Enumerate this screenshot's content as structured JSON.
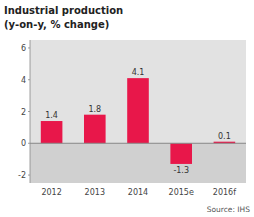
{
  "chart_data": {
    "type": "bar",
    "title": "Industrial production",
    "subtitle": "(y-on-y, % change)",
    "annotations": [
      "Source: IHS"
    ],
    "categories": [
      "2012",
      "2013",
      "2014",
      "2015e",
      "2016f"
    ],
    "values": [
      1.4,
      1.8,
      4.1,
      -1.3,
      0.1
    ],
    "color": "#e8174a",
    "ylim": [
      -2.5,
      6.5
    ],
    "yticks": [
      -2,
      0,
      2,
      4,
      6
    ],
    "grid": false,
    "data_labels": true
  }
}
